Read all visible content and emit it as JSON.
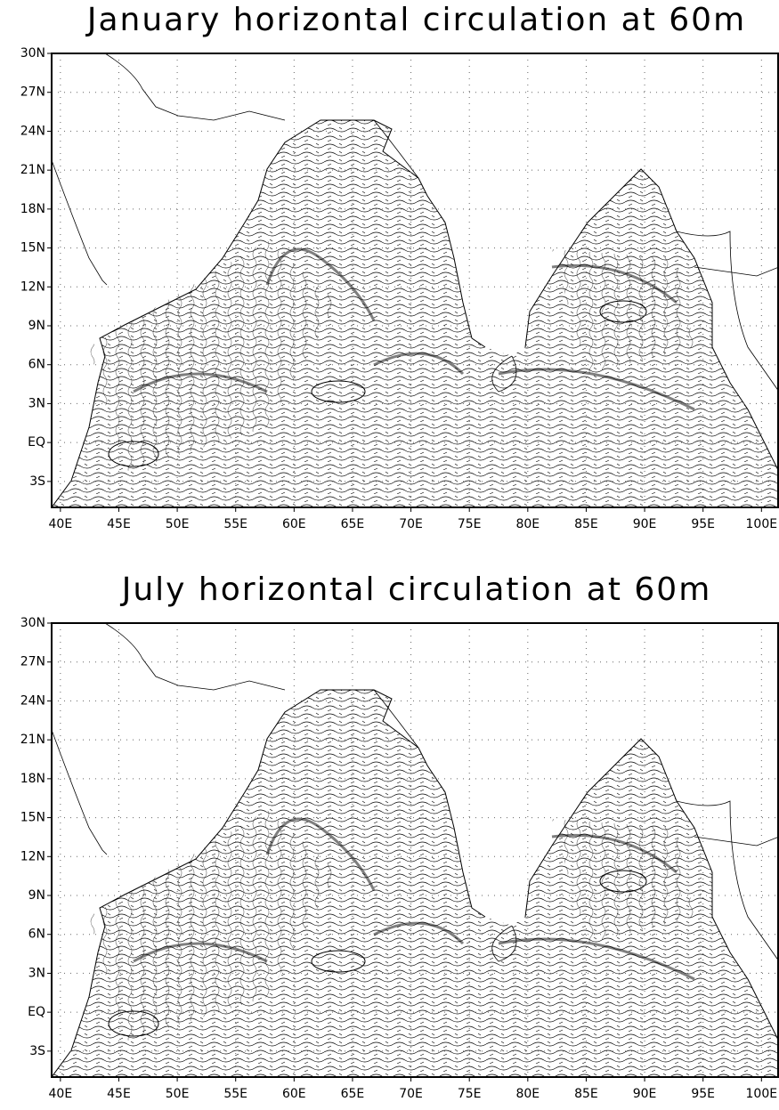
{
  "chart_data": [
    {
      "type": "map",
      "title": "January horizontal circulation at 60m",
      "xlim": [
        39.25,
        101.5
      ],
      "ylim": [
        -5,
        30
      ],
      "grid": true,
      "xticks": [
        {
          "value": 40,
          "label": "40E"
        },
        {
          "value": 45,
          "label": "45E"
        },
        {
          "value": 50,
          "label": "50E"
        },
        {
          "value": 55,
          "label": "55E"
        },
        {
          "value": 60,
          "label": "60E"
        },
        {
          "value": 65,
          "label": "65E"
        },
        {
          "value": 70,
          "label": "70E"
        },
        {
          "value": 75,
          "label": "75E"
        },
        {
          "value": 80,
          "label": "80E"
        },
        {
          "value": 85,
          "label": "85E"
        },
        {
          "value": 90,
          "label": "90E"
        },
        {
          "value": 95,
          "label": "95E"
        },
        {
          "value": 100,
          "label": "100E"
        }
      ],
      "yticks": [
        {
          "value": 30,
          "label": "30N"
        },
        {
          "value": 27,
          "label": "27N"
        },
        {
          "value": 24,
          "label": "24N"
        },
        {
          "value": 21,
          "label": "21N"
        },
        {
          "value": 18,
          "label": "18N"
        },
        {
          "value": 15,
          "label": "15N"
        },
        {
          "value": 12,
          "label": "12N"
        },
        {
          "value": 9,
          "label": "9N"
        },
        {
          "value": 6,
          "label": "6N"
        },
        {
          "value": 3,
          "label": "3N"
        },
        {
          "value": 0,
          "label": "EQ"
        },
        {
          "value": -3,
          "label": "3S"
        }
      ]
    },
    {
      "type": "map",
      "title": "July horizontal circulation at 60m",
      "xlim": [
        39.25,
        101.5
      ],
      "ylim": [
        -5,
        30
      ],
      "grid": true,
      "xticks": [
        {
          "value": 40,
          "label": "40E"
        },
        {
          "value": 45,
          "label": "45E"
        },
        {
          "value": 50,
          "label": "50E"
        },
        {
          "value": 55,
          "label": "55E"
        },
        {
          "value": 60,
          "label": "60E"
        },
        {
          "value": 65,
          "label": "65E"
        },
        {
          "value": 70,
          "label": "70E"
        },
        {
          "value": 75,
          "label": "75E"
        },
        {
          "value": 80,
          "label": "80E"
        },
        {
          "value": 85,
          "label": "85E"
        },
        {
          "value": 90,
          "label": "90E"
        },
        {
          "value": 95,
          "label": "95E"
        },
        {
          "value": 100,
          "label": "100E"
        }
      ],
      "yticks": [
        {
          "value": 30,
          "label": "30N"
        },
        {
          "value": 27,
          "label": "27N"
        },
        {
          "value": 24,
          "label": "24N"
        },
        {
          "value": 21,
          "label": "21N"
        },
        {
          "value": 18,
          "label": "18N"
        },
        {
          "value": 15,
          "label": "15N"
        },
        {
          "value": 12,
          "label": "12N"
        },
        {
          "value": 9,
          "label": "9N"
        },
        {
          "value": 6,
          "label": "6N"
        },
        {
          "value": 3,
          "label": "3N"
        },
        {
          "value": 0,
          "label": "EQ"
        },
        {
          "value": -3,
          "label": "3S"
        }
      ]
    }
  ]
}
